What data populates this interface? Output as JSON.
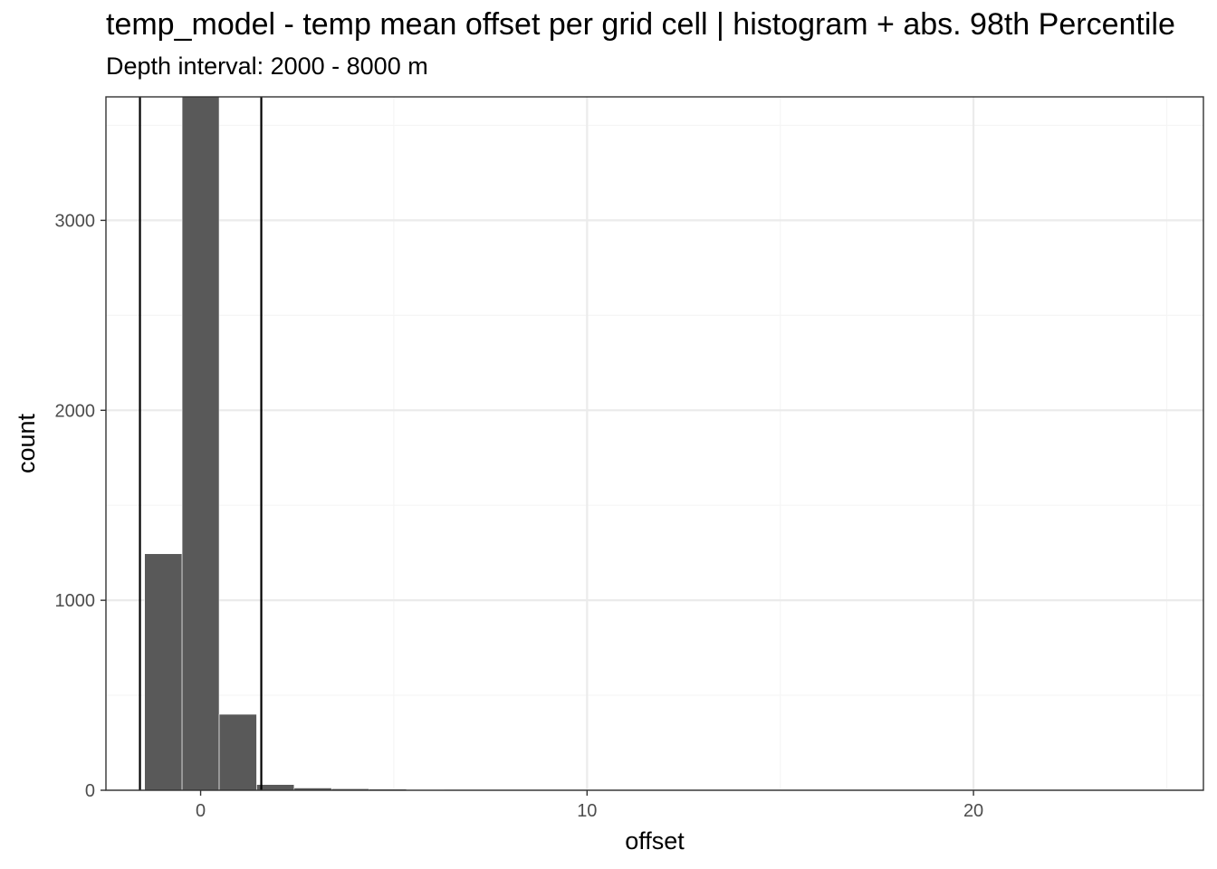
{
  "chart_data": {
    "type": "histogram",
    "title": "temp_model  -  temp mean offset per grid cell | histogram + abs. 98th Percentile",
    "subtitle": "Depth interval: 2000 - 8000 m",
    "xlabel": "offset",
    "ylabel": "count",
    "xlim": [
      -2.45,
      25.95
    ],
    "ylim": [
      0,
      3650
    ],
    "x_ticks": [
      0,
      10,
      20
    ],
    "x_tick_labels": [
      "0",
      "10",
      "20"
    ],
    "x_minor_ticks": [
      -5,
      5,
      15,
      25
    ],
    "y_ticks": [
      0,
      1000,
      2000,
      3000
    ],
    "y_tick_labels": [
      "0",
      "1000",
      "2000",
      "3000"
    ],
    "y_minor_ticks": [
      500,
      1500,
      2500,
      3500
    ],
    "bars": [
      {
        "x0": -1.45,
        "x1": -0.48,
        "count": 1245
      },
      {
        "x0": -0.48,
        "x1": 0.48,
        "count": 3700
      },
      {
        "x0": 0.48,
        "x1": 1.45,
        "count": 400
      },
      {
        "x0": 1.45,
        "x1": 2.42,
        "count": 30
      },
      {
        "x0": 2.42,
        "x1": 3.39,
        "count": 12
      },
      {
        "x0": 3.39,
        "x1": 4.36,
        "count": 8
      },
      {
        "x0": 4.36,
        "x1": 5.33,
        "count": 6
      },
      {
        "x0": 5.33,
        "x1": 6.3,
        "count": 3
      },
      {
        "x0": 6.3,
        "x1": 7.27,
        "count": 1
      },
      {
        "x0": 7.27,
        "x1": 8.24,
        "count": 1
      }
    ],
    "vlines": [
      {
        "name": "lower-98th-percentile",
        "x": -1.57
      },
      {
        "name": "upper-98th-percentile",
        "x": 1.57
      }
    ],
    "colors": {
      "bar": "#595959",
      "grid_major": "#ebebeb",
      "grid_minor": "#f5f5f5",
      "panel_border": "#333333",
      "vline": "#000000"
    }
  }
}
